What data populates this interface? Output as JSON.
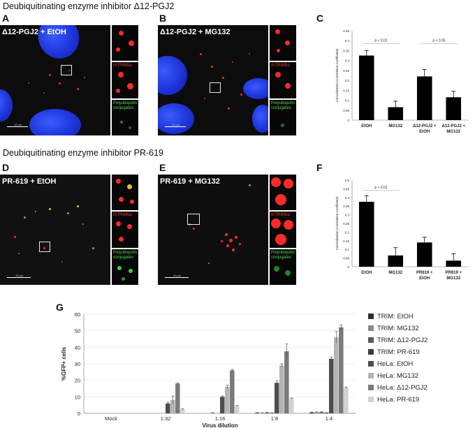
{
  "section_titles": {
    "top": "Deubiquitinating enzyme inhibitor Δ12-PGJ2",
    "middle": "Deubiquitinating enzyme inhibitor PR-619"
  },
  "panels": {
    "A": {
      "letter": "A",
      "label": "Δ12-PGJ2 + EtOH"
    },
    "B": {
      "letter": "B",
      "label": "Δ12-PGJ2 + MG132"
    },
    "C": {
      "letter": "C"
    },
    "D": {
      "letter": "D",
      "label": "PR-619 + EtOH"
    },
    "E": {
      "letter": "E",
      "label": "PR-619 + MG132"
    },
    "F": {
      "letter": "F"
    },
    "G": {
      "letter": "G"
    }
  },
  "inset_labels": {
    "trim": "rhTRIM5α",
    "poly_line1": "Polyubiquitin",
    "poly_line2": "conjugates"
  },
  "colors": {
    "red_channel": "#ff2a2a",
    "green_channel": "#3cd03c",
    "nucleus": "#1d34d8",
    "bar": "#000000"
  },
  "chart_data": [
    {
      "id": "C",
      "type": "bar",
      "ylabel": "Colocalization (Correlation Coefficient)",
      "ylim": [
        0,
        0.45
      ],
      "yticks": [
        "0",
        "0.05",
        "0.1",
        "0.15",
        "0.2",
        "0.25",
        "0.3",
        "0.35",
        "0.4",
        "0.45"
      ],
      "categories": [
        "EtOH",
        "MG132",
        "Δ12-PGJ2 + EtOH",
        "Δ12-PGJ2 + MG132"
      ],
      "category_lines": [
        [
          "EtOH"
        ],
        [
          "MG132"
        ],
        [
          "Δ12-PGJ2 +",
          "EtOH"
        ],
        [
          "Δ12-PGJ2 +",
          "MG132"
        ]
      ],
      "values": [
        0.325,
        0.065,
        0.22,
        0.115
      ],
      "errors": [
        0.025,
        0.03,
        0.035,
        0.03
      ],
      "annotations": [
        {
          "text": "p < 0.01",
          "from": 0,
          "to": 1,
          "y": 0.385
        },
        {
          "text": "p < 0.05",
          "from": 2,
          "to": 3,
          "y": 0.385
        }
      ]
    },
    {
      "id": "F",
      "type": "bar",
      "ylabel": "Colocalization (Correlation Coefficient)",
      "ylim": [
        0,
        0.5
      ],
      "yticks": [
        "0",
        "0.05",
        "0.1",
        "0.15",
        "0.2",
        "0.25",
        "0.3",
        "0.35",
        "0.4",
        "0.45",
        "0.5"
      ],
      "categories": [
        "EtOH",
        "MG132",
        "PR619 + EtOH",
        "PR619 + MG132"
      ],
      "category_lines": [
        [
          "EtOH"
        ],
        [
          "MG132"
        ],
        [
          "PR619 +",
          "EtOH"
        ],
        [
          "PR619 +",
          "MG132"
        ]
      ],
      "values": [
        0.375,
        0.065,
        0.14,
        0.035
      ],
      "errors": [
        0.035,
        0.045,
        0.03,
        0.04
      ],
      "annotations": [
        {
          "text": "p < 0.01",
          "from": 0,
          "to": 1,
          "y": 0.44
        }
      ]
    },
    {
      "id": "G",
      "type": "bar",
      "xlabel": "Virus dilution",
      "ylabel": "%GFP+ cells",
      "ylim": [
        0,
        60
      ],
      "yticks": [
        "0",
        "10",
        "20",
        "30",
        "40",
        "50",
        "60"
      ],
      "categories": [
        "Mock",
        "1:32",
        "1:16",
        "1:8",
        "1:4"
      ],
      "series": [
        {
          "name": "TRIM: EtOH",
          "color": "#2e2e2e",
          "values": [
            0,
            0,
            0,
            0.3,
            0.5
          ],
          "errors": [
            0,
            0,
            0,
            0.2,
            0.3
          ]
        },
        {
          "name": "TRIM: MG132",
          "color": "#8a8a8a",
          "values": [
            0,
            0,
            0,
            0.2,
            0.6
          ],
          "errors": [
            0,
            0,
            0,
            0.2,
            0.3
          ]
        },
        {
          "name": "TRIM: Δ12-PGJ2",
          "color": "#595959",
          "values": [
            0,
            0,
            0.2,
            0.4,
            0.7
          ],
          "errors": [
            0,
            0,
            0.2,
            0.2,
            0.3
          ]
        },
        {
          "name": "TRIM: PR-619",
          "color": "#3c3c3c",
          "values": [
            0,
            0,
            0,
            0.2,
            0.3
          ],
          "errors": [
            0,
            0,
            0,
            0.2,
            0.2
          ]
        },
        {
          "name": "HeLa: EtOH",
          "color": "#4d4d4d",
          "values": [
            0,
            6,
            10,
            18.5,
            33
          ],
          "errors": [
            0,
            0.8,
            0.6,
            1.2,
            1.0
          ]
        },
        {
          "name": "HeLa: MG132",
          "color": "#b4b4b4",
          "values": [
            0,
            8,
            16,
            29,
            46
          ],
          "errors": [
            0,
            2.5,
            1.0,
            1.0,
            3.5
          ]
        },
        {
          "name": "HeLa: Δ12-PGJ2",
          "color": "#7a7a7a",
          "values": [
            0,
            18,
            26,
            37.5,
            52
          ],
          "errors": [
            0,
            0.4,
            0.6,
            4.5,
            1.5
          ]
        },
        {
          "name": "HeLa: PR-619",
          "color": "#d2d2d2",
          "values": [
            0,
            2.5,
            4.5,
            9,
            15.5
          ],
          "errors": [
            0,
            0.3,
            0.4,
            0.3,
            0.4
          ]
        }
      ]
    }
  ],
  "scale_bar_text": "10 μm"
}
